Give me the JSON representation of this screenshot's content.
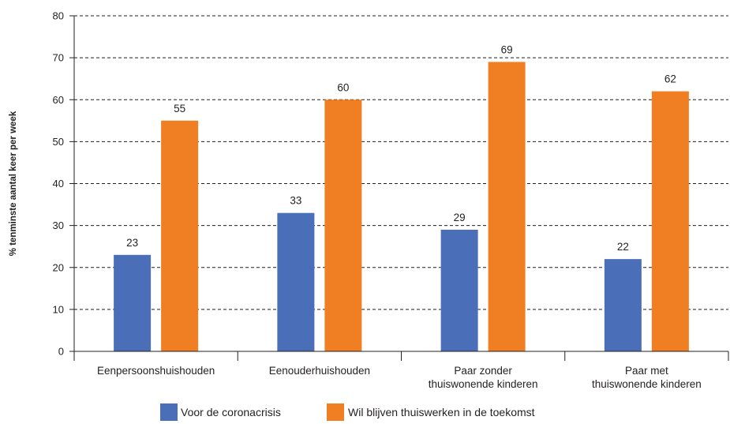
{
  "chart_data": {
    "type": "bar",
    "categories": [
      [
        "Eenpersoonshuishouden"
      ],
      [
        "Eenouderhuishouden"
      ],
      [
        "Paar zonder",
        "thuiswonende kinderen"
      ],
      [
        "Paar met",
        "thuiswonende kinderen"
      ]
    ],
    "series": [
      {
        "name": "Voor de coronacrisis",
        "values": [
          23,
          33,
          29,
          22
        ],
        "color": "#4a6fb8"
      },
      {
        "name": "Wil blijven thuiswerken in de toekomst",
        "values": [
          55,
          60,
          69,
          62
        ],
        "color": "#ef7f22"
      }
    ],
    "ylabel": "% tenminste aantal keer per week",
    "ylim": [
      0,
      80
    ],
    "yticks": [
      0,
      10,
      20,
      30,
      40,
      50,
      60,
      70,
      80
    ],
    "grid": "dashed horizontal",
    "legend": "bottom-center"
  }
}
